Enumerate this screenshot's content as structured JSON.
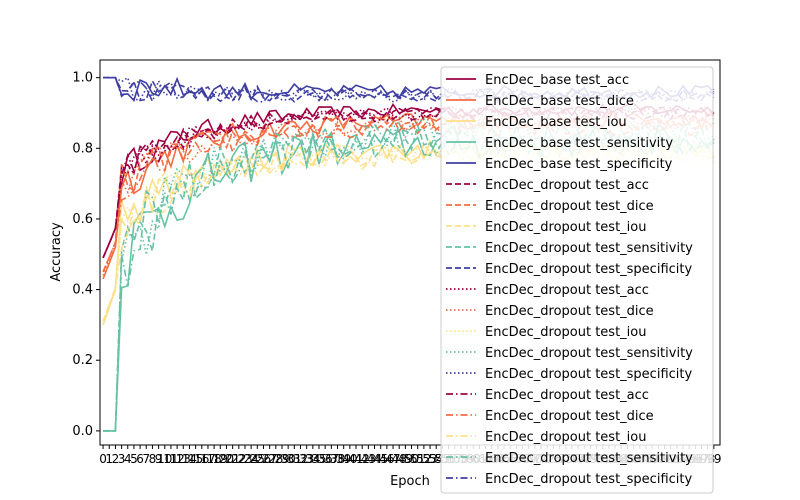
{
  "chart_data": {
    "type": "line",
    "title": "",
    "xlabel": "Epoch",
    "ylabel": "Accuracy",
    "xlim": [
      -0.5,
      100
    ],
    "ylim": [
      -0.04,
      1.05
    ],
    "y_ticks": [
      "0.0",
      "0.2",
      "0.4",
      "0.6",
      "0.8",
      "1.0"
    ],
    "x_ticks_start": 0,
    "x_ticks_end": 99,
    "x_ticks_visible_labels": [
      "0",
      "1",
      "2",
      "3",
      "4",
      "5",
      "6",
      "7",
      "8",
      "9",
      "10",
      "11",
      "12",
      "13",
      "14",
      "15",
      "16",
      "17",
      "18",
      "19",
      "20",
      "21",
      "22",
      "23",
      "24",
      "25",
      "26",
      "27",
      "28",
      "29",
      "30",
      "31",
      "32",
      "33",
      "34",
      "35",
      "36",
      "37",
      "38",
      "39",
      "40",
      "41",
      "42",
      "43",
      "44",
      "45",
      "46",
      "47",
      "48",
      "49",
      "50",
      "51",
      "52"
    ],
    "grid": false,
    "legend_position": "top-right",
    "series": [
      {
        "name": "EncDec_base test_acc",
        "color": "#9e0142",
        "dash": "solid",
        "start": 0.49,
        "final": 0.91,
        "noise": 0.03
      },
      {
        "name": "EncDec_base test_dice",
        "color": "#f46d43",
        "dash": "solid",
        "start": 0.43,
        "final": 0.88,
        "noise": 0.04
      },
      {
        "name": "EncDec_base test_iou",
        "color": "#fee08b",
        "dash": "solid",
        "start": 0.3,
        "final": 0.8,
        "noise": 0.05
      },
      {
        "name": "EncDec_base test_sensitivity",
        "color": "#66c2a5",
        "dash": "solid",
        "start": 0.0,
        "final": 0.82,
        "noise": 0.08
      },
      {
        "name": "EncDec_base test_specificity",
        "color": "#3f3fa3",
        "dash": "solid",
        "start": 1.0,
        "final": 0.96,
        "noise": 0.03
      },
      {
        "name": "EncDec_dropout test_acc",
        "color": "#9e0142",
        "dash": "dashed",
        "start": 0.49,
        "final": 0.9,
        "noise": 0.03
      },
      {
        "name": "EncDec_dropout test_dice",
        "color": "#f46d43",
        "dash": "dashed",
        "start": 0.45,
        "final": 0.87,
        "noise": 0.04
      },
      {
        "name": "EncDec_dropout test_iou",
        "color": "#fee08b",
        "dash": "dashed",
        "start": 0.31,
        "final": 0.79,
        "noise": 0.05
      },
      {
        "name": "EncDec_dropout test_sensitivity",
        "color": "#66c2a5",
        "dash": "dashed",
        "start": 0.0,
        "final": 0.83,
        "noise": 0.08
      },
      {
        "name": "EncDec_dropout test_specificity",
        "color": "#3f3fa3",
        "dash": "dashed",
        "start": 1.0,
        "final": 0.95,
        "noise": 0.03
      },
      {
        "name": "EncDec_dropout test_acc",
        "color": "#9e0142",
        "dash": "dotted",
        "start": 0.49,
        "final": 0.9,
        "noise": 0.03
      },
      {
        "name": "EncDec_dropout test_dice",
        "color": "#f46d43",
        "dash": "dotted",
        "start": 0.44,
        "final": 0.87,
        "noise": 0.04
      },
      {
        "name": "EncDec_dropout test_iou",
        "color": "#fee08b",
        "dash": "dotted",
        "start": 0.3,
        "final": 0.79,
        "noise": 0.05
      },
      {
        "name": "EncDec_dropout test_sensitivity",
        "color": "#66c2a5",
        "dash": "dotted",
        "start": 0.0,
        "final": 0.84,
        "noise": 0.08
      },
      {
        "name": "EncDec_dropout test_specificity",
        "color": "#3f3fa3",
        "dash": "dotted",
        "start": 1.0,
        "final": 0.95,
        "noise": 0.03
      },
      {
        "name": "EncDec_dropout test_acc",
        "color": "#9e0142",
        "dash": "dashdot",
        "start": 0.49,
        "final": 0.9,
        "noise": 0.03
      },
      {
        "name": "EncDec_dropout test_dice",
        "color": "#f46d43",
        "dash": "dashdot",
        "start": 0.45,
        "final": 0.86,
        "noise": 0.04
      },
      {
        "name": "EncDec_dropout test_iou",
        "color": "#fee08b",
        "dash": "dashdot",
        "start": 0.31,
        "final": 0.78,
        "noise": 0.05
      },
      {
        "name": "EncDec_dropout test_sensitivity",
        "color": "#66c2a5",
        "dash": "dashdot",
        "start": 0.0,
        "final": 0.83,
        "noise": 0.08
      },
      {
        "name": "EncDec_dropout test_specificity",
        "color": "#3f3fa3",
        "dash": "dashdot",
        "start": 1.0,
        "final": 0.95,
        "noise": 0.03
      }
    ]
  }
}
